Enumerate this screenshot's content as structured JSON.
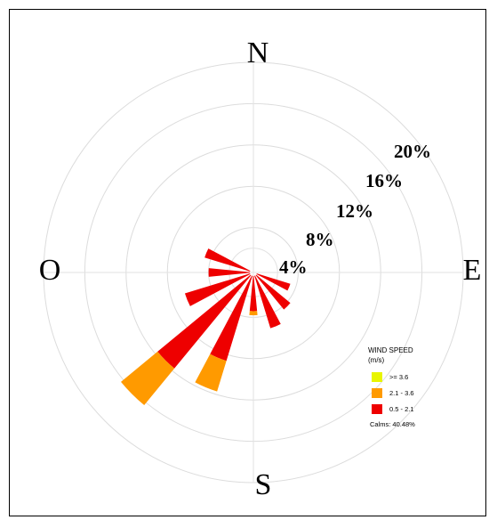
{
  "chart_data": {
    "type": "wind-rose",
    "directions": {
      "north": "N",
      "east": "E",
      "south": "S",
      "west": "O"
    },
    "ring_labels": [
      "4%",
      "8%",
      "12%",
      "16%",
      "20%"
    ],
    "ring_values": [
      4,
      8,
      12,
      16,
      20
    ],
    "legend": {
      "title": "WIND SPEED",
      "unit": "(m/s)",
      "bins": [
        {
          "label": ">= 3.6",
          "color": "#e8f500"
        },
        {
          "label": "2.1 - 3.6",
          "color": "#ff9a00"
        },
        {
          "label": "0.5 - 2.1",
          "color": "#ee0000"
        }
      ],
      "calms": "Calms: 40.48%"
    },
    "sectors": [
      {
        "bearing": 112.5,
        "speed_0_5_2_1": 3.4,
        "speed_2_1_3_6": 0,
        "speed_3_6_plus": 0
      },
      {
        "bearing": 135,
        "speed_0_5_2_1": 4.3,
        "speed_2_1_3_6": 0,
        "speed_3_6_plus": 0
      },
      {
        "bearing": 157.5,
        "speed_0_5_2_1": 5.3,
        "speed_2_1_3_6": 0,
        "speed_3_6_plus": 0
      },
      {
        "bearing": 180,
        "speed_0_5_2_1": 3.4,
        "speed_2_1_3_6": 0.4,
        "speed_3_6_plus": 0
      },
      {
        "bearing": 202.5,
        "speed_0_5_2_1": 8.6,
        "speed_2_1_3_6": 3.1,
        "speed_3_6_plus": 0
      },
      {
        "bearing": 225,
        "speed_0_5_2_1": 11.7,
        "speed_2_1_3_6": 4.6,
        "speed_3_6_plus": 0
      },
      {
        "bearing": 247.5,
        "speed_0_5_2_1": 6.6,
        "speed_2_1_3_6": 0,
        "speed_3_6_plus": 0
      },
      {
        "bearing": 270,
        "speed_0_5_2_1": 4.0,
        "speed_2_1_3_6": 0,
        "speed_3_6_plus": 0
      },
      {
        "bearing": 292.5,
        "speed_0_5_2_1": 4.6,
        "speed_2_1_3_6": 0,
        "speed_3_6_plus": 0
      }
    ]
  }
}
